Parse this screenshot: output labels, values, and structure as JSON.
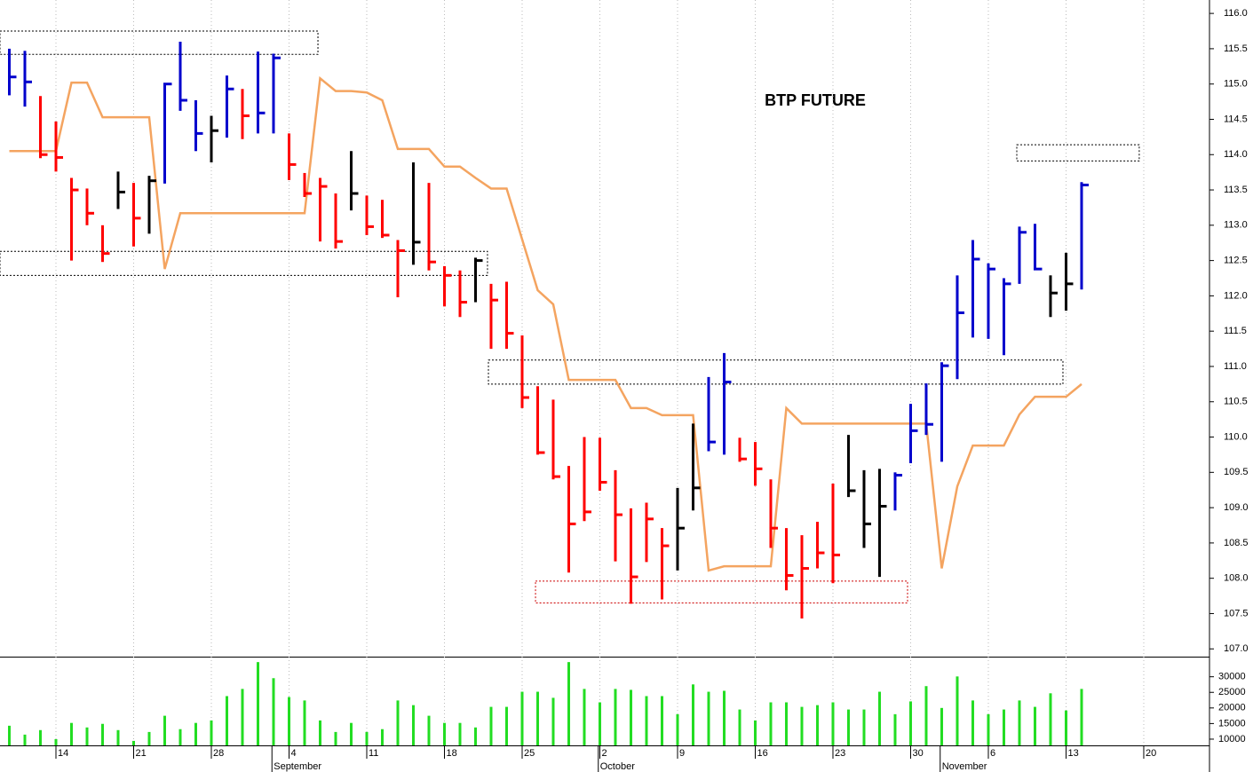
{
  "chart_data": [
    {
      "type": "hlc",
      "title": "BTP FUTURE",
      "ylim": [
        106.89,
        116.19
      ],
      "xlim": [
        -0.6,
        77.23
      ],
      "yticks": [
        {
          "value": 107,
          "label": "107.0"
        },
        {
          "value": 107.5,
          "label": "107.5"
        },
        {
          "value": 108,
          "label": "108.0"
        },
        {
          "value": 108.5,
          "label": "108.5"
        },
        {
          "value": 109,
          "label": "109.0"
        },
        {
          "value": 109.5,
          "label": "109.5"
        },
        {
          "value": 110,
          "label": "110.0"
        },
        {
          "value": 110.5,
          "label": "110.5"
        },
        {
          "value": 111,
          "label": "111.0"
        },
        {
          "value": 111.5,
          "label": "111.5"
        },
        {
          "value": 112,
          "label": "112.0"
        },
        {
          "value": 112.5,
          "label": "112.5"
        },
        {
          "value": 113,
          "label": "113.0"
        },
        {
          "value": 113.5,
          "label": "113.5"
        },
        {
          "value": 114,
          "label": "114.0"
        },
        {
          "value": 114.5,
          "label": "114.5"
        },
        {
          "value": 115,
          "label": "115.0"
        },
        {
          "value": 115.5,
          "label": "115.5"
        },
        {
          "value": 116,
          "label": "116.0"
        }
      ],
      "high": [
        115.5,
        115.47,
        114.83,
        114.47,
        113.67,
        113.52,
        113.0,
        113.76,
        113.6,
        113.7,
        115.0,
        115.6,
        114.77,
        114.55,
        115.12,
        114.93,
        115.46,
        115.43,
        114.3,
        113.74,
        113.67,
        113.45,
        114.05,
        113.42,
        113.36,
        112.79,
        113.89,
        113.6,
        112.42,
        112.36,
        112.54,
        112.17,
        112.2,
        111.44,
        110.72,
        110.53,
        109.59,
        110.0,
        109.99,
        109.53,
        108.99,
        109.07,
        108.71,
        109.28,
        110.19,
        110.85,
        111.19,
        109.99,
        109.93,
        109.4,
        108.71,
        108.61,
        108.8,
        109.34,
        110.03,
        109.53,
        109.55,
        109.5,
        110.47,
        110.76,
        111.06,
        112.29,
        112.79,
        112.46,
        112.25,
        112.98,
        113.02,
        112.29,
        112.61,
        113.61
      ],
      "low": [
        114.84,
        114.68,
        113.95,
        113.76,
        112.5,
        113.0,
        112.48,
        113.23,
        112.7,
        112.88,
        113.59,
        114.62,
        114.05,
        113.89,
        114.24,
        114.22,
        114.3,
        114.3,
        113.64,
        113.4,
        112.77,
        112.67,
        113.21,
        112.86,
        112.82,
        111.98,
        112.44,
        112.36,
        111.85,
        111.7,
        111.91,
        111.25,
        111.25,
        110.41,
        109.75,
        109.4,
        108.08,
        108.81,
        109.24,
        108.24,
        107.64,
        108.23,
        107.7,
        108.11,
        108.96,
        109.8,
        109.75,
        109.65,
        109.31,
        108.43,
        107.83,
        107.43,
        108.14,
        107.93,
        109.15,
        108.43,
        108.02,
        108.96,
        109.63,
        110.03,
        109.65,
        110.82,
        111.41,
        111.39,
        111.16,
        112.17,
        112.38,
        111.7,
        111.79,
        112.09
      ],
      "close": [
        115.1,
        115.03,
        114.0,
        113.96,
        113.5,
        113.17,
        112.6,
        113.47,
        113.1,
        113.63,
        115.0,
        114.77,
        114.3,
        114.34,
        114.93,
        114.55,
        114.59,
        115.37,
        113.86,
        113.45,
        113.55,
        112.77,
        113.45,
        112.98,
        112.86,
        112.64,
        112.76,
        112.48,
        112.29,
        111.91,
        112.5,
        111.94,
        111.47,
        110.56,
        109.78,
        109.44,
        108.77,
        108.94,
        109.36,
        108.9,
        108.02,
        108.84,
        108.46,
        108.71,
        109.28,
        109.93,
        110.78,
        109.69,
        109.55,
        108.71,
        108.04,
        108.14,
        108.36,
        108.33,
        109.24,
        108.77,
        109.02,
        109.46,
        110.09,
        110.18,
        111.01,
        111.76,
        112.52,
        112.38,
        112.17,
        112.9,
        112.38,
        112.04,
        112.17,
        113.57
      ],
      "colors": [
        "#0000cc",
        "#0000cc",
        "#ff0000",
        "#ff0000",
        "#ff0000",
        "#ff0000",
        "#ff0000",
        "#000000",
        "#ff0000",
        "#000000",
        "#0000cc",
        "#0000cc",
        "#0000cc",
        "#000000",
        "#0000cc",
        "#ff0000",
        "#0000cc",
        "#0000cc",
        "#ff0000",
        "#ff0000",
        "#ff0000",
        "#ff0000",
        "#000000",
        "#ff0000",
        "#ff0000",
        "#ff0000",
        "#000000",
        "#ff0000",
        "#ff0000",
        "#ff0000",
        "#000000",
        "#ff0000",
        "#ff0000",
        "#ff0000",
        "#ff0000",
        "#ff0000",
        "#ff0000",
        "#ff0000",
        "#ff0000",
        "#ff0000",
        "#ff0000",
        "#ff0000",
        "#ff0000",
        "#000000",
        "#000000",
        "#0000cc",
        "#0000cc",
        "#ff0000",
        "#ff0000",
        "#ff0000",
        "#ff0000",
        "#ff0000",
        "#ff0000",
        "#ff0000",
        "#000000",
        "#000000",
        "#000000",
        "#0000cc",
        "#0000cc",
        "#0000cc",
        "#0000cc",
        "#0000cc",
        "#0000cc",
        "#0000cc",
        "#0000cc",
        "#0000cc",
        "#0000cc",
        "#000000",
        "#000000",
        "#0000cc"
      ],
      "line": {
        "color": "#f4a460",
        "values": [
          114.05,
          114.05,
          114.05,
          114.05,
          115.02,
          115.02,
          114.53,
          114.53,
          114.53,
          114.53,
          112.38,
          113.17,
          113.17,
          113.17,
          113.17,
          113.17,
          113.17,
          113.17,
          113.17,
          113.17,
          115.08,
          114.9,
          114.9,
          114.88,
          114.77,
          114.08,
          114.08,
          114.08,
          113.83,
          113.83,
          113.67,
          113.52,
          113.52,
          112.8,
          112.08,
          111.88,
          110.81,
          110.81,
          110.81,
          110.81,
          110.41,
          110.41,
          110.31,
          110.31,
          110.31,
          108.11,
          108.17,
          108.17,
          108.17,
          108.17,
          110.41,
          110.19,
          110.19,
          110.19,
          110.19,
          110.19,
          110.19,
          110.19,
          110.19,
          110.19,
          108.14,
          109.3,
          109.88,
          109.88,
          109.88,
          110.32,
          110.57,
          110.57,
          110.57,
          110.75
        ]
      },
      "zones": [
        {
          "xlim": [
            -0.6,
            19.86
          ],
          "ylim": [
            115.42,
            115.75
          ],
          "color": "#000000"
        },
        {
          "xlim": [
            -0.6,
            30.77
          ],
          "ylim": [
            112.29,
            112.63
          ],
          "color": "#000000"
        },
        {
          "xlim": [
            30.83,
            67.8
          ],
          "ylim": [
            110.75,
            111.09
          ],
          "color": "#000000"
        },
        {
          "xlim": [
            33.86,
            57.8
          ],
          "ylim": [
            107.65,
            107.96
          ],
          "color": "#cc0000"
        },
        {
          "xlim": [
            64.83,
            72.71
          ],
          "ylim": [
            113.91,
            114.14
          ],
          "color": "#000000"
        }
      ]
    },
    {
      "type": "bar",
      "color": "#22dd22",
      "ylim": [
        8000,
        36450
      ],
      "yticks": [
        10000,
        15000,
        20000,
        25000,
        30000
      ],
      "values": [
        14300,
        11450,
        12900,
        10000,
        15200,
        13750,
        14900,
        12900,
        9440,
        12300,
        17500,
        13200,
        15200,
        16000,
        23800,
        26100,
        34700,
        29550,
        23500,
        22400,
        16000,
        12300,
        15200,
        12300,
        13200,
        22400,
        20900,
        17500,
        15200,
        15200,
        13750,
        20350,
        20350,
        25200,
        25200,
        23250,
        34700,
        26100,
        21800,
        26100,
        25800,
        23800,
        23800,
        18000,
        27550,
        25200,
        25500,
        19500,
        16000,
        21800,
        21800,
        20350,
        20900,
        21800,
        19500,
        19500,
        25200,
        18000,
        22100,
        27000,
        20000,
        30100,
        22400,
        18000,
        19500,
        22400,
        20350,
        24700,
        19200,
        26100
      ],
      "xticks": [
        {
          "value": 3,
          "label": "14"
        },
        {
          "value": 8,
          "label": "21"
        },
        {
          "value": 13,
          "label": "28"
        },
        {
          "value": 18,
          "label": "4"
        },
        {
          "value": 23,
          "label": "11"
        },
        {
          "value": 28,
          "label": "18"
        },
        {
          "value": 33,
          "label": "25"
        },
        {
          "value": 38,
          "label": "2"
        },
        {
          "value": 43,
          "label": "9"
        },
        {
          "value": 48,
          "label": "16"
        },
        {
          "value": 53,
          "label": "23"
        },
        {
          "value": 58,
          "label": "30"
        },
        {
          "value": 63,
          "label": "6"
        },
        {
          "value": 68,
          "label": "13"
        },
        {
          "value": 73,
          "label": "20"
        }
      ],
      "months": [
        {
          "value": 16.9,
          "label": "September"
        },
        {
          "value": 37.9,
          "label": "October"
        },
        {
          "value": 59.9,
          "label": "November"
        }
      ]
    }
  ]
}
